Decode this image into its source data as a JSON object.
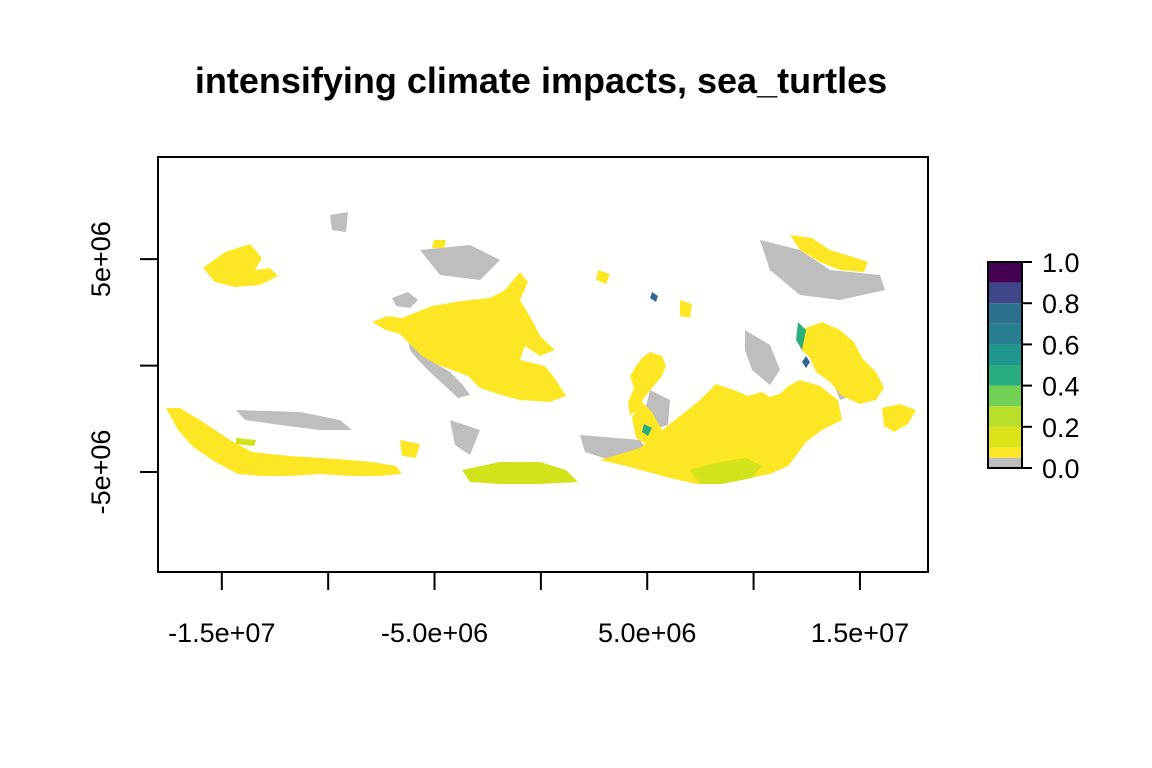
{
  "title": "intensifying climate impacts, sea_turtles",
  "chart_data": {
    "type": "heatmap",
    "title": "intensifying climate impacts, sea_turtles",
    "projection": "Mollweide",
    "x_ticks": [
      {
        "value": -15000000,
        "label": "-1.5e+07"
      },
      {
        "value": -10000000,
        "label": ""
      },
      {
        "value": -5000000,
        "label": "-5.0e+06"
      },
      {
        "value": 0,
        "label": ""
      },
      {
        "value": 5000000,
        "label": "5.0e+06"
      },
      {
        "value": 10000000,
        "label": ""
      },
      {
        "value": 15000000,
        "label": "1.5e+07"
      }
    ],
    "y_ticks": [
      {
        "value": 5000000,
        "label": "5e+06"
      },
      {
        "value": 0,
        "label": ""
      },
      {
        "value": -5000000,
        "label": "-5e+06"
      }
    ],
    "xlim": [
      -18000000,
      18200000
    ],
    "ylim": [
      -9700000,
      9800000
    ],
    "legend": {
      "placement": "right",
      "ticks": [
        {
          "value": 0.0,
          "label": "0.0"
        },
        {
          "value": 0.2,
          "label": "0.2"
        },
        {
          "value": 0.4,
          "label": "0.4"
        },
        {
          "value": 0.6,
          "label": "0.6"
        },
        {
          "value": 0.8,
          "label": "0.8"
        },
        {
          "value": 1.0,
          "label": "1.0"
        }
      ],
      "bins": [
        {
          "from": 0.0,
          "to": 0.05,
          "color": "#bebebe"
        },
        {
          "from": 0.05,
          "to": 0.1,
          "color": "#fde725"
        },
        {
          "from": 0.1,
          "to": 0.2,
          "color": "#dce319"
        },
        {
          "from": 0.2,
          "to": 0.3,
          "color": "#b8de29"
        },
        {
          "from": 0.3,
          "to": 0.4,
          "color": "#73d055"
        },
        {
          "from": 0.4,
          "to": 0.5,
          "color": "#29af7f"
        },
        {
          "from": 0.5,
          "to": 0.6,
          "color": "#1f968b"
        },
        {
          "from": 0.6,
          "to": 0.7,
          "color": "#287d8e"
        },
        {
          "from": 0.7,
          "to": 0.8,
          "color": "#2d708e"
        },
        {
          "from": 0.8,
          "to": 0.9,
          "color": "#3f4788"
        },
        {
          "from": 0.9,
          "to": 1.0,
          "color": "#440154"
        }
      ]
    },
    "colors": {
      "zero": "#bebebe",
      "low": "#fde725",
      "low_mid": "#d2e21b",
      "mid": "#29af7f",
      "high": "#31688e"
    }
  }
}
